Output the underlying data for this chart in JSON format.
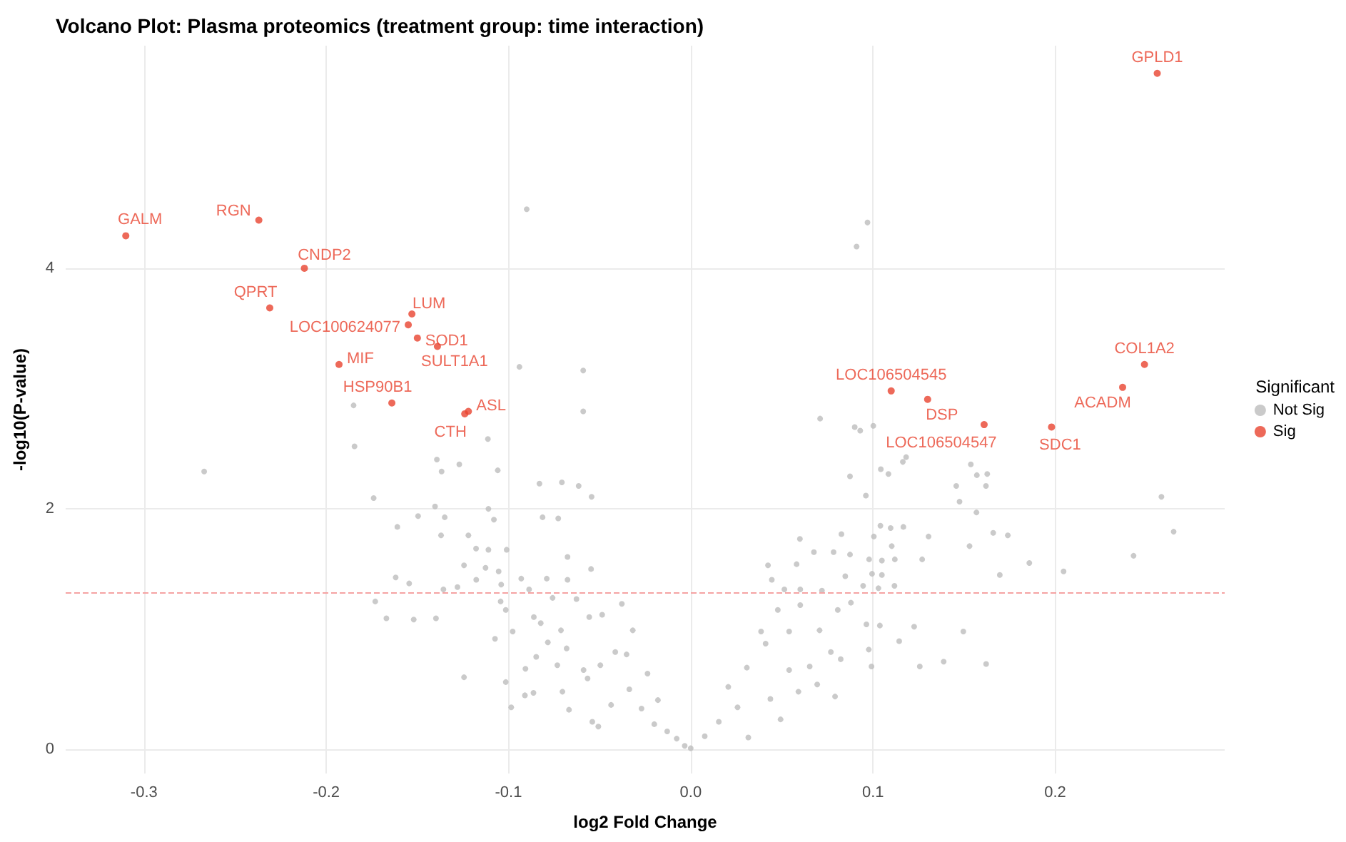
{
  "chart_data": {
    "type": "scatter",
    "title": "Volcano Plot: Plasma proteomics (treatment group: time interaction)",
    "xlabel": "log2 Fold Change",
    "ylabel": "-log10(P-value)",
    "legend_title": "Significant",
    "legend": "right",
    "grid": true,
    "marker": "circle",
    "xlim": [
      -0.343,
      0.293
    ],
    "ylim": [
      -0.2,
      5.85
    ],
    "xticks": [
      -0.3,
      -0.2,
      -0.1,
      {
        "value": 0,
        "label": "0.0"
      },
      0.1,
      0.2
    ],
    "yticks": [
      0,
      2,
      4
    ],
    "ref_lines": [
      {
        "axis": "y",
        "value": 1.3,
        "color": "#f5a3a3",
        "line_style": "dashed"
      }
    ],
    "series": [
      {
        "name": "Not Sig",
        "color": "#bdbdbd",
        "x": [
          -0.267,
          -0.1845,
          -0.1113,
          -0.1393,
          -0.1367,
          -0.127,
          -0.1059,
          -0.174,
          -0.1403,
          -0.111,
          -0.083,
          -0.0707,
          -0.0615,
          -0.0544,
          -0.161,
          -0.1496,
          -0.135,
          -0.108,
          -0.0813,
          -0.0727,
          -0.137,
          -0.122,
          -0.1178,
          -0.111,
          -0.101,
          -0.0676,
          -0.1244,
          -0.1126,
          -0.1054,
          -0.0547,
          -0.1619,
          -0.1545,
          -0.128,
          -0.1357,
          -0.1177,
          -0.093,
          -0.079,
          -0.0676,
          -0.104,
          -0.0887,
          -0.1731,
          -0.1043,
          -0.0758,
          -0.0627,
          -0.0378,
          -0.167,
          -0.152,
          -0.1398,
          -0.1015,
          -0.0861,
          -0.0557,
          -0.0486,
          -0.0318,
          -0.0977,
          -0.0823,
          -0.0712,
          -0.1074,
          -0.0784,
          -0.0681,
          -0.0848,
          -0.0414,
          -0.0352,
          -0.1244,
          -0.1015,
          -0.0907,
          -0.0732,
          -0.0588,
          -0.0496,
          -0.0237,
          -0.091,
          -0.0985,
          -0.0863,
          -0.0668,
          -0.0704,
          -0.054,
          -0.0507,
          -0.0437,
          -0.0337,
          -0.027,
          -0.018,
          -0.02,
          -0.0129,
          -0.0077,
          -0.0033,
          0.0,
          -0.0566,
          -0.09,
          0.097,
          0.091,
          -0.094,
          -0.059,
          -0.059,
          -0.185,
          0.071,
          0.09,
          0.2583,
          0.265,
          0.243,
          0.2046,
          0.1858,
          0.174,
          0.166,
          0.1696,
          0.1537,
          0.1627,
          0.162,
          0.157,
          0.1457,
          0.1475,
          0.1568,
          0.153,
          0.1305,
          0.127,
          0.1167,
          0.1097,
          0.1041,
          0.1005,
          0.1103,
          0.112,
          0.1049,
          0.0979,
          0.0995,
          0.1049,
          0.1118,
          0.103,
          0.0946,
          0.0827,
          0.0874,
          0.0784,
          0.0676,
          0.0599,
          0.0581,
          0.0424,
          0.0848,
          0.0807,
          0.0879,
          0.072,
          0.0601,
          0.0514,
          0.0445,
          0.0478,
          0.0601,
          0.0964,
          0.1038,
          0.1226,
          0.1496,
          0.1144,
          0.0977,
          0.0992,
          0.1257,
          0.1388,
          0.1621,
          0.0823,
          0.0792,
          0.0769,
          0.0707,
          0.0653,
          0.0591,
          0.0493,
          0.054,
          0.0386,
          0.0411,
          0.0308,
          0.0206,
          0.0316,
          0.0154,
          0.0077,
          0.0257,
          0.0437,
          0.054,
          0.0694,
          0.0874,
          0.0961,
          0.1043,
          0.1085,
          0.1164,
          0.1182,
          0.093,
          0.1002
        ],
        "values": [
          2.31,
          2.52,
          2.58,
          2.41,
          2.31,
          2.37,
          2.32,
          2.09,
          2.02,
          2.0,
          2.21,
          2.22,
          2.19,
          2.1,
          1.85,
          1.94,
          1.93,
          1.91,
          1.93,
          1.92,
          1.78,
          1.78,
          1.67,
          1.66,
          1.66,
          1.6,
          1.53,
          1.51,
          1.48,
          1.5,
          1.43,
          1.38,
          1.35,
          1.33,
          1.41,
          1.42,
          1.42,
          1.41,
          1.37,
          1.33,
          1.23,
          1.23,
          1.26,
          1.25,
          1.21,
          1.09,
          1.08,
          1.09,
          1.16,
          1.1,
          1.1,
          1.12,
          0.99,
          0.98,
          1.05,
          0.99,
          0.92,
          0.89,
          0.84,
          0.77,
          0.81,
          0.79,
          0.6,
          0.56,
          0.67,
          0.7,
          0.66,
          0.7,
          0.63,
          0.45,
          0.35,
          0.47,
          0.33,
          0.48,
          0.23,
          0.19,
          0.37,
          0.5,
          0.34,
          0.41,
          0.21,
          0.15,
          0.09,
          0.03,
          0.01,
          0.59,
          4.49,
          4.38,
          4.18,
          3.18,
          3.15,
          2.81,
          2.86,
          2.75,
          2.68,
          2.1,
          1.81,
          1.61,
          1.48,
          1.55,
          1.78,
          1.8,
          1.45,
          2.37,
          2.29,
          2.19,
          2.28,
          2.19,
          2.06,
          1.97,
          1.69,
          1.77,
          1.58,
          1.85,
          1.84,
          1.86,
          1.77,
          1.69,
          1.58,
          1.57,
          1.58,
          1.46,
          1.45,
          1.36,
          1.34,
          1.36,
          1.79,
          1.62,
          1.64,
          1.64,
          1.75,
          1.54,
          1.53,
          1.44,
          1.16,
          1.22,
          1.32,
          1.33,
          1.33,
          1.41,
          1.16,
          1.2,
          1.04,
          1.03,
          1.02,
          0.98,
          0.9,
          0.83,
          0.69,
          0.69,
          0.73,
          0.71,
          0.75,
          0.44,
          0.81,
          0.99,
          0.69,
          0.48,
          0.25,
          0.98,
          0.98,
          0.88,
          0.68,
          0.52,
          0.1,
          0.23,
          0.11,
          0.35,
          0.42,
          0.66,
          0.54,
          2.27,
          2.11,
          2.33,
          2.29,
          2.39,
          2.43,
          2.65,
          2.69
        ]
      },
      {
        "name": "Sig",
        "color": "#e8432f",
        "x": [
          -0.31,
          -0.237,
          -0.212,
          -0.231,
          -0.153,
          -0.155,
          -0.15,
          -0.139,
          -0.193,
          -0.164,
          -0.122,
          -0.124,
          0.11,
          0.13,
          0.161,
          0.198,
          0.237,
          0.249,
          0.256
        ],
        "values": [
          4.27,
          4.4,
          4.0,
          3.67,
          3.62,
          3.53,
          3.42,
          3.35,
          3.2,
          2.88,
          2.81,
          2.79,
          2.98,
          2.91,
          2.7,
          2.68,
          3.01,
          3.2,
          5.62
        ],
        "value_labels": [
          "GALM",
          "RGN",
          "CNDP2",
          "QPRT",
          "LUM",
          "LOC100624077",
          "SOD1",
          "SULT1A1",
          "MIF",
          "HSP90B1",
          "ASL",
          "CTH",
          "LOC106504545",
          "DSP",
          "LOC106504547",
          "SDC1",
          "ACADM",
          "COL1A2",
          "GPLD1"
        ]
      }
    ]
  }
}
